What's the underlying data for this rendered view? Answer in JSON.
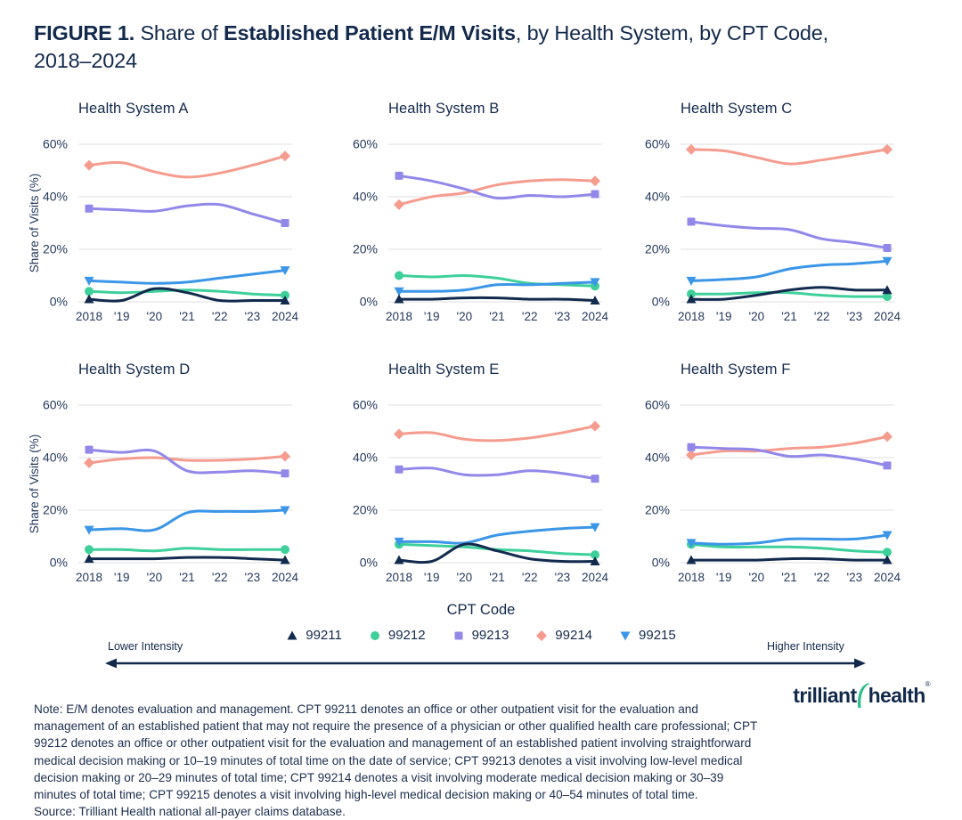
{
  "title": {
    "figure_label": "FIGURE 1.",
    "normal1": " Share of ",
    "bold": "Established Patient E/M Visits",
    "normal2": ", by Health System, by CPT Code, 2018–2024"
  },
  "colors": {
    "text": "#13294B",
    "tick": "#24395C",
    "grid": "#E5E5E5",
    "cpt_99211": "#122A4D",
    "cpt_99212": "#3ED09A",
    "cpt_99213": "#9288EA",
    "cpt_99214": "#F59C8F",
    "cpt_99215": "#3B96E8",
    "logo_green": "#2EBE8B"
  },
  "axis": {
    "ylabel": "Share of Visits (%)",
    "yticks": [
      "60%",
      "40%",
      "20%",
      "0%"
    ],
    "ytick_values": [
      60,
      40,
      20,
      0
    ],
    "xticks": [
      "2018",
      "'19",
      "'20",
      "'21",
      "'22",
      "'23",
      "2024"
    ],
    "ylim": [
      0,
      65
    ],
    "grid": "horizontal-only"
  },
  "legend": {
    "title": "CPT Code",
    "lower": "Lower Intensity",
    "higher": "Higher Intensity",
    "items": [
      {
        "code": "99211",
        "marker": "triangle-up",
        "color": "#122A4D"
      },
      {
        "code": "99212",
        "marker": "circle",
        "color": "#3ED09A"
      },
      {
        "code": "99213",
        "marker": "square",
        "color": "#9288EA"
      },
      {
        "code": "99214",
        "marker": "diamond",
        "color": "#F59C8F"
      },
      {
        "code": "99215",
        "marker": "triangle-down",
        "color": "#3B96E8"
      }
    ]
  },
  "chart_data": [
    {
      "type": "line",
      "title": "Health System A",
      "show_ylabel": true,
      "x": [
        2018,
        2019,
        2020,
        2021,
        2022,
        2023,
        2024
      ],
      "series": [
        {
          "name": "99211",
          "marker": "triangle-up",
          "color": "#122A4D",
          "values": [
            1,
            0.5,
            5,
            3.5,
            0.5,
            0.5,
            0.5
          ]
        },
        {
          "name": "99212",
          "marker": "circle",
          "color": "#3ED09A",
          "values": [
            4,
            3.5,
            4,
            4.5,
            4,
            3,
            2.5
          ]
        },
        {
          "name": "99213",
          "marker": "square",
          "color": "#9288EA",
          "values": [
            35.5,
            35,
            34.5,
            36.5,
            37,
            33.5,
            30
          ]
        },
        {
          "name": "99214",
          "marker": "diamond",
          "color": "#F59C8F",
          "values": [
            52,
            53,
            49.5,
            47.5,
            49,
            52,
            55.5
          ]
        },
        {
          "name": "99215",
          "marker": "triangle-down",
          "color": "#3B96E8",
          "values": [
            8,
            7.5,
            7,
            7.5,
            9,
            10.5,
            12
          ]
        }
      ]
    },
    {
      "type": "line",
      "title": "Health System B",
      "show_ylabel": false,
      "x": [
        2018,
        2019,
        2020,
        2021,
        2022,
        2023,
        2024
      ],
      "series": [
        {
          "name": "99211",
          "marker": "triangle-up",
          "color": "#122A4D",
          "values": [
            1,
            1,
            1.5,
            1.5,
            1,
            1,
            0.5
          ]
        },
        {
          "name": "99212",
          "marker": "circle",
          "color": "#3ED09A",
          "values": [
            10,
            9.5,
            10,
            9,
            7,
            6.5,
            6
          ]
        },
        {
          "name": "99213",
          "marker": "square",
          "color": "#9288EA",
          "values": [
            48,
            46,
            43,
            39.5,
            40.5,
            40,
            41
          ]
        },
        {
          "name": "99214",
          "marker": "diamond",
          "color": "#F59C8F",
          "values": [
            37,
            40,
            41.5,
            44.5,
            46,
            46.5,
            46
          ]
        },
        {
          "name": "99215",
          "marker": "triangle-down",
          "color": "#3B96E8",
          "values": [
            4,
            4,
            4.5,
            6.5,
            6.5,
            7,
            7.5
          ]
        }
      ]
    },
    {
      "type": "line",
      "title": "Health System C",
      "show_ylabel": false,
      "x": [
        2018,
        2019,
        2020,
        2021,
        2022,
        2023,
        2024
      ],
      "series": [
        {
          "name": "99211",
          "marker": "triangle-up",
          "color": "#122A4D",
          "values": [
            1,
            1,
            2.5,
            4.5,
            5.5,
            4.5,
            4.5
          ]
        },
        {
          "name": "99212",
          "marker": "circle",
          "color": "#3ED09A",
          "values": [
            3,
            3,
            3.5,
            3.5,
            2.5,
            2,
            2
          ]
        },
        {
          "name": "99213",
          "marker": "square",
          "color": "#9288EA",
          "values": [
            30.5,
            29,
            28,
            27.5,
            24,
            22.5,
            20.5
          ]
        },
        {
          "name": "99214",
          "marker": "diamond",
          "color": "#F59C8F",
          "values": [
            58,
            57.5,
            55,
            52.5,
            54,
            56,
            58
          ]
        },
        {
          "name": "99215",
          "marker": "triangle-down",
          "color": "#3B96E8",
          "values": [
            8,
            8.5,
            9.5,
            12.5,
            14,
            14.5,
            15.5
          ]
        }
      ]
    },
    {
      "type": "line",
      "title": "Health System D",
      "show_ylabel": true,
      "x": [
        2018,
        2019,
        2020,
        2021,
        2022,
        2023,
        2024
      ],
      "series": [
        {
          "name": "99211",
          "marker": "triangle-up",
          "color": "#122A4D",
          "values": [
            1.5,
            1.5,
            1.5,
            2,
            2,
            1.5,
            1
          ]
        },
        {
          "name": "99212",
          "marker": "circle",
          "color": "#3ED09A",
          "values": [
            5,
            5,
            4.5,
            5.5,
            5,
            5,
            5
          ]
        },
        {
          "name": "99213",
          "marker": "square",
          "color": "#9288EA",
          "values": [
            43,
            42,
            42.5,
            35,
            34.5,
            35,
            34
          ]
        },
        {
          "name": "99214",
          "marker": "diamond",
          "color": "#F59C8F",
          "values": [
            38,
            39.5,
            40,
            39,
            39,
            39.5,
            40.5
          ]
        },
        {
          "name": "99215",
          "marker": "triangle-down",
          "color": "#3B96E8",
          "values": [
            12.5,
            13,
            12.5,
            19,
            19.5,
            19.5,
            20
          ]
        }
      ]
    },
    {
      "type": "line",
      "title": "Health System E",
      "show_ylabel": false,
      "x": [
        2018,
        2019,
        2020,
        2021,
        2022,
        2023,
        2024
      ],
      "series": [
        {
          "name": "99211",
          "marker": "triangle-up",
          "color": "#122A4D",
          "values": [
            1,
            0.5,
            7,
            4.5,
            1.5,
            0.5,
            0.5
          ]
        },
        {
          "name": "99212",
          "marker": "circle",
          "color": "#3ED09A",
          "values": [
            7,
            6.5,
            6,
            5,
            4.5,
            3.5,
            3
          ]
        },
        {
          "name": "99213",
          "marker": "square",
          "color": "#9288EA",
          "values": [
            35.5,
            36,
            33.5,
            33.5,
            35,
            34,
            32
          ]
        },
        {
          "name": "99214",
          "marker": "diamond",
          "color": "#F59C8F",
          "values": [
            49,
            49.5,
            47,
            46.5,
            47.5,
            49.5,
            52
          ]
        },
        {
          "name": "99215",
          "marker": "triangle-down",
          "color": "#3B96E8",
          "values": [
            8,
            8,
            7.5,
            10.5,
            12,
            13,
            13.5
          ]
        }
      ]
    },
    {
      "type": "line",
      "title": "Health System F",
      "show_ylabel": false,
      "x": [
        2018,
        2019,
        2020,
        2021,
        2022,
        2023,
        2024
      ],
      "series": [
        {
          "name": "99211",
          "marker": "triangle-up",
          "color": "#122A4D",
          "values": [
            1,
            1,
            1,
            1.5,
            1.5,
            1,
            1
          ]
        },
        {
          "name": "99212",
          "marker": "circle",
          "color": "#3ED09A",
          "values": [
            7,
            6,
            6,
            6,
            5.5,
            4.5,
            4
          ]
        },
        {
          "name": "99213",
          "marker": "square",
          "color": "#9288EA",
          "values": [
            44,
            43.5,
            43,
            40.5,
            41,
            39.5,
            37
          ]
        },
        {
          "name": "99214",
          "marker": "diamond",
          "color": "#F59C8F",
          "values": [
            41,
            42.5,
            42.5,
            43.5,
            44,
            45.5,
            48
          ]
        },
        {
          "name": "99215",
          "marker": "triangle-down",
          "color": "#3B96E8",
          "values": [
            7.5,
            7,
            7.5,
            9,
            9,
            9,
            10.5
          ]
        }
      ]
    }
  ],
  "note": "Note: E/M denotes evaluation and management. CPT 99211 denotes an office or other outpatient visit for the evaluation and management of an established patient that may not require the presence of a physician or other qualified health care professional; CPT 99212 denotes an office or other outpatient visit for the evaluation and management of an established patient involving straightforward medical decision making or 10–19 minutes of total time on the date of service; CPT 99213 denotes a visit involving low-level medical decision making or 20–29 minutes of total time; CPT 99214 denotes a visit involving moderate medical decision making or 30–39 minutes of total time; CPT 99215 denotes a visit involving high-level medical decision making or 40–54 minutes of total time.",
  "source": "Source: Trilliant Health national all-payer claims database.",
  "logo": {
    "word1": "trilliant",
    "word2": "health",
    "registered": "®"
  }
}
